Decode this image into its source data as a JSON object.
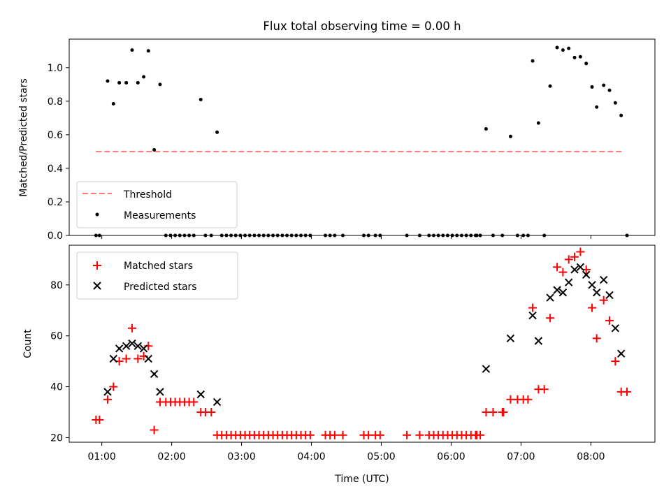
{
  "figure": {
    "title": "Flux total observing time = 0.00 h"
  },
  "chart_data": [
    {
      "type": "scatter",
      "panel": "top",
      "xlabel": "",
      "ylabel": "Matched/Predicted stars",
      "ylim": [
        0,
        1.17
      ],
      "yticks": [
        0.0,
        0.2,
        0.4,
        0.6,
        0.8,
        1.0
      ],
      "ytick_labels": [
        "0.0",
        "0.2",
        "0.4",
        "0.6",
        "0.8",
        "1.0"
      ],
      "legend_position": "lower-left",
      "threshold": {
        "name": "Threshold",
        "value": 0.5,
        "x_range": [
          "00:55",
          "08:28"
        ],
        "color": "#ff7a7a",
        "style": "dashed"
      },
      "series": [
        {
          "name": "Measurements",
          "color": "#000000",
          "marker": "dot",
          "points": [
            [
              "00:55",
              0.0
            ],
            [
              "00:58",
              0.0
            ],
            [
              "01:05",
              0.92
            ],
            [
              "01:10",
              0.785
            ],
            [
              "01:15",
              0.91
            ],
            [
              "01:21",
              0.91
            ],
            [
              "01:26",
              1.105
            ],
            [
              "01:31",
              0.91
            ],
            [
              "01:36",
              0.945
            ],
            [
              "01:40",
              1.1
            ],
            [
              "01:45",
              0.51
            ],
            [
              "01:50",
              0.9
            ],
            [
              "01:55",
              0.0
            ],
            [
              "01:59",
              0.0
            ],
            [
              "02:03",
              0.0
            ],
            [
              "02:07",
              0.0
            ],
            [
              "02:11",
              0.0
            ],
            [
              "02:15",
              0.0
            ],
            [
              "02:19",
              0.0
            ],
            [
              "02:25",
              0.81
            ],
            [
              "02:29",
              0.0
            ],
            [
              "02:34",
              0.0
            ],
            [
              "02:39",
              0.615
            ],
            [
              "02:43",
              0.0
            ],
            [
              "02:47",
              0.0
            ],
            [
              "02:51",
              0.0
            ],
            [
              "02:55",
              0.0
            ],
            [
              "02:59",
              0.0
            ],
            [
              "03:03",
              0.0
            ],
            [
              "03:07",
              0.0
            ],
            [
              "03:11",
              0.0
            ],
            [
              "03:15",
              0.0
            ],
            [
              "03:19",
              0.0
            ],
            [
              "03:23",
              0.0
            ],
            [
              "03:27",
              0.0
            ],
            [
              "03:31",
              0.0
            ],
            [
              "03:35",
              0.0
            ],
            [
              "03:39",
              0.0
            ],
            [
              "03:43",
              0.0
            ],
            [
              "03:47",
              0.0
            ],
            [
              "03:51",
              0.0
            ],
            [
              "03:55",
              0.0
            ],
            [
              "03:59",
              0.0
            ],
            [
              "04:12",
              0.0
            ],
            [
              "04:16",
              0.0
            ],
            [
              "04:20",
              0.0
            ],
            [
              "04:27",
              0.0
            ],
            [
              "04:45",
              0.0
            ],
            [
              "04:49",
              0.0
            ],
            [
              "04:55",
              0.0
            ],
            [
              "04:59",
              0.0
            ],
            [
              "05:22",
              0.0
            ],
            [
              "05:33",
              0.0
            ],
            [
              "05:41",
              0.0
            ],
            [
              "05:45",
              0.0
            ],
            [
              "05:49",
              0.0
            ],
            [
              "05:53",
              0.0
            ],
            [
              "05:57",
              0.0
            ],
            [
              "06:01",
              0.0
            ],
            [
              "06:05",
              0.0
            ],
            [
              "06:09",
              0.0
            ],
            [
              "06:13",
              0.0
            ],
            [
              "06:17",
              0.0
            ],
            [
              "06:21",
              0.0
            ],
            [
              "06:22",
              0.0
            ],
            [
              "06:25",
              0.0
            ],
            [
              "06:30",
              0.635
            ],
            [
              "06:36",
              0.0
            ],
            [
              "06:44",
              0.0
            ],
            [
              "06:51",
              0.59
            ],
            [
              "06:57",
              0.0
            ],
            [
              "07:02",
              0.0
            ],
            [
              "07:06",
              0.0
            ],
            [
              "07:10",
              1.04
            ],
            [
              "07:15",
              0.67
            ],
            [
              "07:20",
              0.0
            ],
            [
              "07:25",
              0.89
            ],
            [
              "07:31",
              1.12
            ],
            [
              "07:36",
              1.105
            ],
            [
              "07:41",
              1.115
            ],
            [
              "07:46",
              1.06
            ],
            [
              "07:51",
              1.065
            ],
            [
              "07:56",
              1.025
            ],
            [
              "08:01",
              0.885
            ],
            [
              "08:05",
              0.765
            ],
            [
              "08:11",
              0.895
            ],
            [
              "08:16",
              0.865
            ],
            [
              "08:21",
              0.79
            ],
            [
              "08:26",
              0.715
            ],
            [
              "08:31",
              0.0
            ]
          ]
        }
      ]
    },
    {
      "type": "scatter",
      "panel": "bottom",
      "xlabel": "Time (UTC)",
      "ylabel": "Count",
      "xlim": [
        "00:32",
        "08:55"
      ],
      "ylim": [
        18.2,
        95.6
      ],
      "xticks": [
        "01:00",
        "02:00",
        "03:00",
        "04:00",
        "05:00",
        "06:00",
        "07:00",
        "08:00"
      ],
      "yticks": [
        20,
        40,
        60,
        80
      ],
      "ytick_labels": [
        "20",
        "40",
        "60",
        "80"
      ],
      "legend_position": "top-left",
      "series": [
        {
          "name": "Matched stars",
          "color": "#ff0000",
          "marker": "plus",
          "points": [
            [
              "00:55",
              27
            ],
            [
              "00:58",
              27
            ],
            [
              "01:05",
              35
            ],
            [
              "01:10",
              40
            ],
            [
              "01:15",
              50
            ],
            [
              "01:21",
              51
            ],
            [
              "01:26",
              63
            ],
            [
              "01:31",
              51
            ],
            [
              "01:36",
              52
            ],
            [
              "01:40",
              56
            ],
            [
              "01:45",
              23
            ],
            [
              "01:50",
              34
            ],
            [
              "01:55",
              34
            ],
            [
              "01:59",
              34
            ],
            [
              "02:03",
              34
            ],
            [
              "02:07",
              34
            ],
            [
              "02:11",
              34
            ],
            [
              "02:15",
              34
            ],
            [
              "02:19",
              34
            ],
            [
              "02:25",
              30
            ],
            [
              "02:29",
              30
            ],
            [
              "02:34",
              30
            ],
            [
              "02:39",
              21
            ],
            [
              "02:43",
              21
            ],
            [
              "02:47",
              21
            ],
            [
              "02:51",
              21
            ],
            [
              "02:55",
              21
            ],
            [
              "02:59",
              21
            ],
            [
              "03:03",
              21
            ],
            [
              "03:07",
              21
            ],
            [
              "03:11",
              21
            ],
            [
              "03:15",
              21
            ],
            [
              "03:19",
              21
            ],
            [
              "03:23",
              21
            ],
            [
              "03:27",
              21
            ],
            [
              "03:31",
              21
            ],
            [
              "03:35",
              21
            ],
            [
              "03:39",
              21
            ],
            [
              "03:43",
              21
            ],
            [
              "03:47",
              21
            ],
            [
              "03:51",
              21
            ],
            [
              "03:55",
              21
            ],
            [
              "03:59",
              21
            ],
            [
              "04:12",
              21
            ],
            [
              "04:16",
              21
            ],
            [
              "04:20",
              21
            ],
            [
              "04:27",
              21
            ],
            [
              "04:45",
              21
            ],
            [
              "04:49",
              21
            ],
            [
              "04:55",
              21
            ],
            [
              "04:59",
              21
            ],
            [
              "05:22",
              21
            ],
            [
              "05:33",
              21
            ],
            [
              "05:41",
              21
            ],
            [
              "05:45",
              21
            ],
            [
              "05:49",
              21
            ],
            [
              "05:53",
              21
            ],
            [
              "05:57",
              21
            ],
            [
              "06:01",
              21
            ],
            [
              "06:05",
              21
            ],
            [
              "06:09",
              21
            ],
            [
              "06:13",
              21
            ],
            [
              "06:17",
              21
            ],
            [
              "06:21",
              21
            ],
            [
              "06:22",
              21
            ],
            [
              "06:25",
              21
            ],
            [
              "06:30",
              30
            ],
            [
              "06:36",
              30
            ],
            [
              "06:44",
              30
            ],
            [
              "06:45",
              30
            ],
            [
              "06:51",
              35
            ],
            [
              "06:57",
              35
            ],
            [
              "07:02",
              35
            ],
            [
              "07:06",
              35
            ],
            [
              "07:10",
              71
            ],
            [
              "07:15",
              39
            ],
            [
              "07:20",
              39
            ],
            [
              "07:25",
              67
            ],
            [
              "07:31",
              87
            ],
            [
              "07:36",
              85
            ],
            [
              "07:41",
              90
            ],
            [
              "07:46",
              91
            ],
            [
              "07:51",
              93
            ],
            [
              "07:56",
              86
            ],
            [
              "08:01",
              71
            ],
            [
              "08:05",
              59
            ],
            [
              "08:11",
              74
            ],
            [
              "08:16",
              66
            ],
            [
              "08:21",
              50
            ],
            [
              "08:26",
              38
            ],
            [
              "08:31",
              38
            ]
          ]
        },
        {
          "name": "Predicted stars",
          "color": "#000000",
          "marker": "x",
          "points": [
            [
              "01:05",
              38
            ],
            [
              "01:10",
              51
            ],
            [
              "01:15",
              55
            ],
            [
              "01:21",
              56
            ],
            [
              "01:26",
              57
            ],
            [
              "01:31",
              56
            ],
            [
              "01:36",
              55
            ],
            [
              "01:40",
              51
            ],
            [
              "01:45",
              45
            ],
            [
              "01:50",
              38
            ],
            [
              "02:25",
              37
            ],
            [
              "02:39",
              34
            ],
            [
              "06:30",
              47
            ],
            [
              "06:51",
              59
            ],
            [
              "07:10",
              68
            ],
            [
              "07:15",
              58
            ],
            [
              "07:25",
              75
            ],
            [
              "07:31",
              78
            ],
            [
              "07:36",
              77
            ],
            [
              "07:41",
              81
            ],
            [
              "07:46",
              86
            ],
            [
              "07:51",
              87
            ],
            [
              "07:56",
              84
            ],
            [
              "08:01",
              80
            ],
            [
              "08:05",
              77
            ],
            [
              "08:11",
              82
            ],
            [
              "08:16",
              76
            ],
            [
              "08:21",
              63
            ],
            [
              "08:26",
              53
            ]
          ]
        }
      ]
    }
  ]
}
